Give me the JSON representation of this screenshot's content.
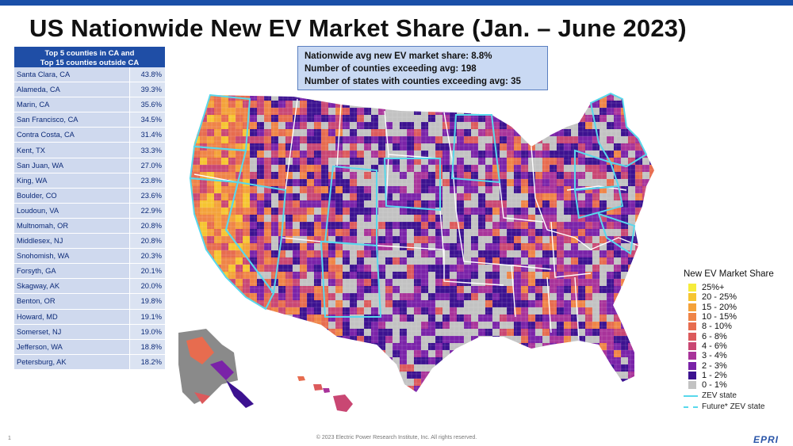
{
  "title": "US Nationwide New EV Market Share (Jan. – June 2023)",
  "table": {
    "header_line1": "Top 5 counties in CA and",
    "header_line2": "Top 15 counties outside CA",
    "rows": [
      {
        "county": "Santa Clara, CA",
        "share": "43.8%"
      },
      {
        "county": "Alameda, CA",
        "share": "39.3%"
      },
      {
        "county": "Marin, CA",
        "share": "35.6%"
      },
      {
        "county": "San Francisco, CA",
        "share": "34.5%"
      },
      {
        "county": "Contra Costa, CA",
        "share": "31.4%"
      },
      {
        "county": "Kent, TX",
        "share": "33.3%"
      },
      {
        "county": "San Juan, WA",
        "share": "27.0%"
      },
      {
        "county": "King, WA",
        "share": "23.8%"
      },
      {
        "county": "Boulder, CO",
        "share": "23.6%"
      },
      {
        "county": "Loudoun, VA",
        "share": "22.9%"
      },
      {
        "county": "Multnomah, OR",
        "share": "20.8%"
      },
      {
        "county": "Middlesex, NJ",
        "share": "20.8%"
      },
      {
        "county": "Snohomish, WA",
        "share": "20.3%"
      },
      {
        "county": "Forsyth, GA",
        "share": "20.1%"
      },
      {
        "county": "Skagway, AK",
        "share": "20.0%"
      },
      {
        "county": "Benton, OR",
        "share": "19.8%"
      },
      {
        "county": "Howard, MD",
        "share": "19.1%"
      },
      {
        "county": "Somerset, NJ",
        "share": "19.0%"
      },
      {
        "county": "Jefferson, WA",
        "share": "18.8%"
      },
      {
        "county": "Petersburg, AK",
        "share": "18.2%"
      }
    ]
  },
  "stats": {
    "line1": "Nationwide avg new EV market share: 8.8%",
    "line2": "Number of counties exceeding avg: 198",
    "line3": "Number of states with counties exceeding avg: 35"
  },
  "legend": {
    "title": "New EV Market Share",
    "bins": [
      {
        "label": "25%+",
        "color": "#f6ec3b"
      },
      {
        "label": "20 - 25%",
        "color": "#f6c531"
      },
      {
        "label": "15 - 20%",
        "color": "#f4a23a"
      },
      {
        "label": "10 - 15%",
        "color": "#ef8447"
      },
      {
        "label": "8 - 10%",
        "color": "#e76c4f"
      },
      {
        "label": "6 - 8%",
        "color": "#dc5a5c"
      },
      {
        "label": "4 - 6%",
        "color": "#c94773"
      },
      {
        "label": "3 - 4%",
        "color": "#a8339a"
      },
      {
        "label": "2 - 3%",
        "color": "#7a23a8"
      },
      {
        "label": "1 - 2%",
        "color": "#3c1290"
      },
      {
        "label": "0 - 1%",
        "color": "#c2c2c2"
      }
    ],
    "zev_label": "ZEV state",
    "future_zev_label": "Future* ZEV state",
    "zev_color": "#58d8ec"
  },
  "footer": "© 2023 Electric Power Research Institute, Inc. All rights reserved.",
  "page_number": "1",
  "logo_text": "EPRI"
}
